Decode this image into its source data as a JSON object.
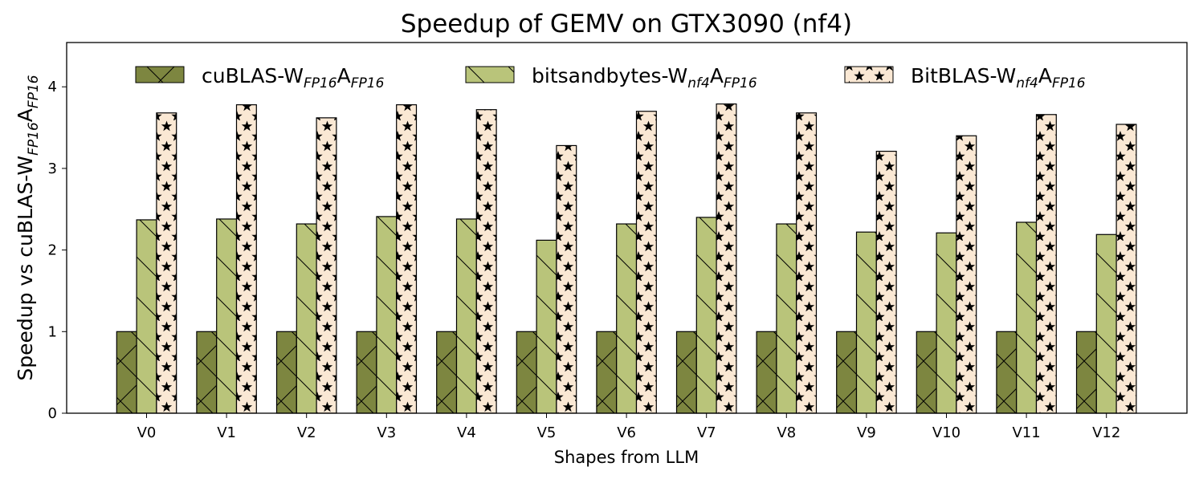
{
  "chart_data": {
    "type": "bar",
    "title": "Speedup of GEMV on GTX3090 (nf4)",
    "xlabel": "Shapes from LLM",
    "ylabel": {
      "base": "Speedup vs cuBLAS-W",
      "sub1": "FP16",
      "mid": "A",
      "sub2": "FP16"
    },
    "categories": [
      "V0",
      "V1",
      "V2",
      "V3",
      "V4",
      "V5",
      "V6",
      "V7",
      "V8",
      "V9",
      "V10",
      "V11",
      "V12"
    ],
    "ylim": [
      0,
      4.55
    ],
    "yticks": [
      "0",
      "1",
      "2",
      "3",
      "4"
    ],
    "grid": false,
    "legend_position": "top",
    "series": [
      {
        "name": {
          "a": "cuBLAS-W",
          "a_sub": "FP16",
          "b": "A",
          "b_sub": "FP16"
        },
        "color": "#7d8640",
        "hatch": "cross",
        "values": [
          1,
          1,
          1,
          1,
          1,
          1,
          1,
          1,
          1,
          1,
          1,
          1,
          1
        ]
      },
      {
        "name": {
          "a": "bitsandbytes-W",
          "a_sub": "nf4",
          "b": "A",
          "b_sub": "FP16"
        },
        "color": "#b9c47a",
        "hatch": "backslash",
        "values": [
          2.37,
          2.38,
          2.32,
          2.41,
          2.38,
          2.12,
          2.32,
          2.4,
          2.32,
          2.22,
          2.21,
          2.34,
          2.19
        ]
      },
      {
        "name": {
          "a": "BitBLAS-W",
          "a_sub": "nf4",
          "b": "A",
          "b_sub": "FP16"
        },
        "color": "#fae8d4",
        "hatch": "star",
        "values": [
          3.68,
          3.78,
          3.62,
          3.78,
          3.72,
          3.28,
          3.7,
          3.79,
          3.68,
          3.21,
          3.4,
          3.66,
          3.54
        ]
      }
    ]
  }
}
